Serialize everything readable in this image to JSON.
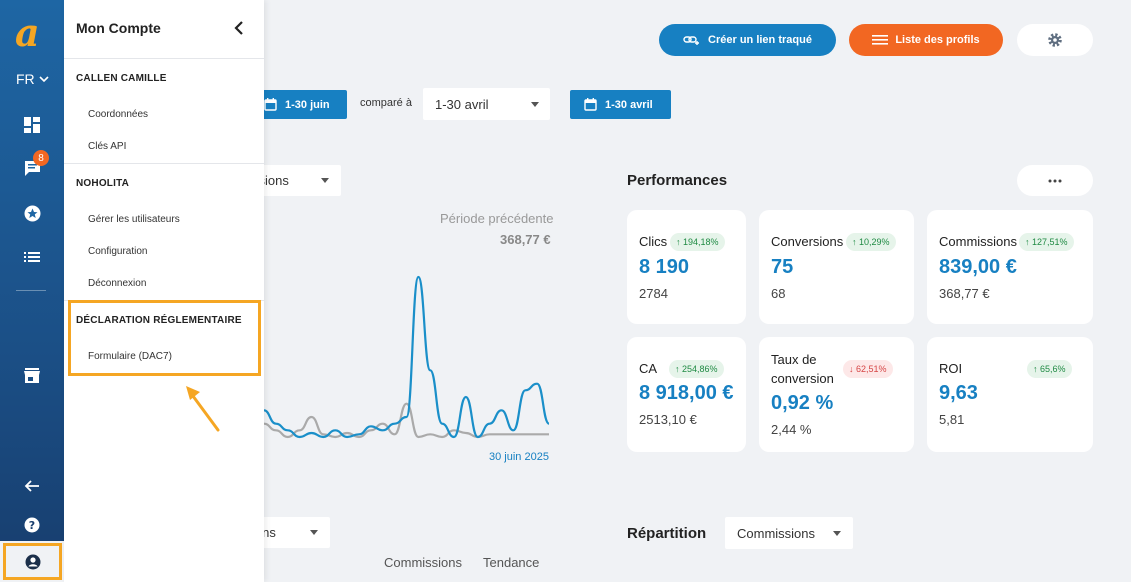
{
  "rail": {
    "language": "FR",
    "notification_count": "8",
    "colors": {
      "accent": "#f5a623",
      "blue": "#1780c2",
      "orange": "#f26722"
    }
  },
  "account_menu": {
    "title": "Mon Compte",
    "sections": [
      {
        "heading": "CALLEN CAMILLE",
        "items": [
          "Coordonnées",
          "Clés API"
        ]
      },
      {
        "heading": "NOHOLITA",
        "items": [
          "Gérer les utilisateurs",
          "Configuration",
          "Déconnexion"
        ]
      },
      {
        "heading": "DÉCLARATION RÉGLEMENTAIRE",
        "items": [
          "Formulaire (DAC7)"
        ]
      }
    ]
  },
  "header": {
    "track_link_label": "Créer un lien traqué",
    "profiles_label": "Liste des profils"
  },
  "filters": {
    "current_period": "1-30 juin",
    "compare_label": "comparé à",
    "compare_select": "1-30 avril",
    "compare_period": "1-30 avril"
  },
  "chart_panel": {
    "metric_select_partial": "ssions",
    "previous_period_label": "Période précédente",
    "previous_period_value": "368,77 €",
    "x_end_label": "30 juin 2025"
  },
  "chart_data": {
    "type": "line",
    "x_end_label": "30 juin 2025",
    "series": [
      {
        "color": "#1a8fc9",
        "values": [
          2,
          1,
          0.5,
          0,
          0.3,
          0,
          0.5,
          0,
          0.2,
          0.8,
          0.5,
          1,
          1.5,
          12,
          5,
          1,
          0,
          3,
          0,
          1,
          2,
          0.5,
          3.5,
          4,
          1
        ]
      },
      {
        "color": "#aaaaaa",
        "values": [
          1,
          0.5,
          0,
          0.5,
          1.5,
          0.2,
          0,
          0.3,
          0,
          0.5,
          1,
          0.2,
          2.5,
          0,
          0.2,
          0,
          0.5,
          0.3,
          0,
          0.2,
          0.2,
          0.2,
          0.2,
          0.2,
          0.2
        ]
      }
    ]
  },
  "performances": {
    "title": "Performances",
    "cards": [
      {
        "label": "Clics",
        "change": "194,18%",
        "trend": "up",
        "value": "8 190",
        "previous": "2784"
      },
      {
        "label": "Conversions",
        "change": "10,29%",
        "trend": "up",
        "value": "75",
        "previous": "68"
      },
      {
        "label": "Commissions",
        "change": "127,51%",
        "trend": "up",
        "value": "839,00 €",
        "previous": "368,77 €"
      },
      {
        "label": "CA",
        "change": "254,86%",
        "trend": "up",
        "value": "8 918,00 €",
        "previous": "2513,10 €"
      },
      {
        "label": "Taux de conversion",
        "change": "62,51%",
        "trend": "down",
        "value": "0,92 %",
        "previous": "2,44 %"
      },
      {
        "label": "ROI",
        "change": "65,6%",
        "trend": "up",
        "value": "9,63",
        "previous": "5,81"
      }
    ]
  },
  "bottom": {
    "left_select_partial": "ions",
    "col_commissions": "Commissions",
    "col_trend": "Tendance",
    "repartition_title": "Répartition",
    "repartition_select": "Commissions"
  }
}
